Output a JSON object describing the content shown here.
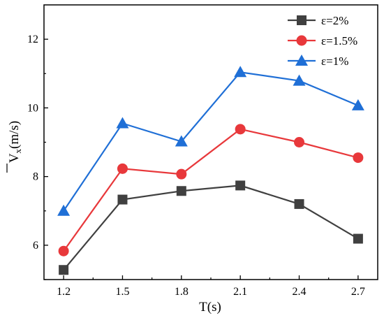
{
  "chart_data": {
    "type": "line",
    "x": [
      1.2,
      1.5,
      1.8,
      2.1,
      2.4,
      2.7
    ],
    "x_tick_labels": [
      "1.2",
      "1.5",
      "1.8",
      "2.1",
      "2.4",
      "2.7"
    ],
    "y_ticks": [
      6,
      8,
      10,
      12
    ],
    "y_tick_labels": [
      "6",
      "8",
      "10",
      "12"
    ],
    "xlabel": "T(s)",
    "ylabel": {
      "main": "V",
      "sub": "x",
      "unit": "(m/s)",
      "overline": true
    },
    "xlim": [
      1.1,
      2.8
    ],
    "ylim": [
      5,
      13
    ],
    "grid": false,
    "legend_position": "top-right",
    "series": [
      {
        "name": "ε=2%",
        "marker": "square",
        "color": "#404040",
        "values": [
          5.28,
          7.33,
          7.58,
          7.74,
          7.2,
          6.19
        ]
      },
      {
        "name": "ε=1.5%",
        "marker": "circle",
        "color": "#e8383b",
        "values": [
          5.83,
          8.23,
          8.07,
          9.38,
          9.0,
          8.55
        ]
      },
      {
        "name": "ε=1%",
        "marker": "triangle",
        "color": "#1f6fd6",
        "values": [
          7.0,
          9.55,
          9.02,
          11.04,
          10.79,
          10.07
        ]
      }
    ]
  }
}
